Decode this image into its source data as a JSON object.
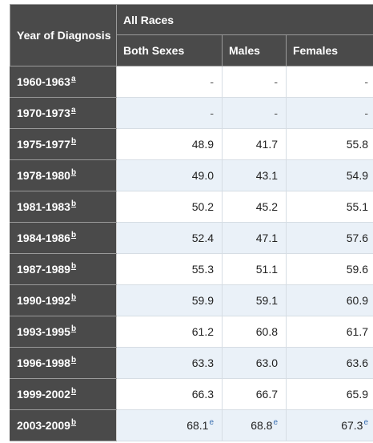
{
  "header": {
    "year_label": "Year of Diagnosis",
    "group_label": "All Races",
    "columns": [
      "Both Sexes",
      "Males",
      "Females"
    ]
  },
  "rows": [
    {
      "year": "1960-1963",
      "note": "a",
      "both": "-",
      "males": "-",
      "females": "-"
    },
    {
      "year": "1970-1973",
      "note": "a",
      "both": "-",
      "males": "-",
      "females": "-"
    },
    {
      "year": "1975-1977",
      "note": "b",
      "both": "48.9",
      "males": "41.7",
      "females": "55.8"
    },
    {
      "year": "1978-1980",
      "note": "b",
      "both": "49.0",
      "males": "43.1",
      "females": "54.9"
    },
    {
      "year": "1981-1983",
      "note": "b",
      "both": "50.2",
      "males": "45.2",
      "females": "55.1"
    },
    {
      "year": "1984-1986",
      "note": "b",
      "both": "52.4",
      "males": "47.1",
      "females": "57.6"
    },
    {
      "year": "1987-1989",
      "note": "b",
      "both": "55.3",
      "males": "51.1",
      "females": "59.6"
    },
    {
      "year": "1990-1992",
      "note": "b",
      "both": "59.9",
      "males": "59.1",
      "females": "60.9"
    },
    {
      "year": "1993-1995",
      "note": "b",
      "both": "61.2",
      "males": "60.8",
      "females": "61.7"
    },
    {
      "year": "1996-1998",
      "note": "b",
      "both": "63.3",
      "males": "63.0",
      "females": "63.6"
    },
    {
      "year": "1999-2002",
      "note": "b",
      "both": "66.3",
      "males": "66.7",
      "females": "65.9"
    },
    {
      "year": "2003-2009",
      "note": "b",
      "both": "68.1",
      "both_note": "e",
      "males": "68.8",
      "males_note": "e",
      "females": "67.3",
      "females_note": "e"
    }
  ]
}
